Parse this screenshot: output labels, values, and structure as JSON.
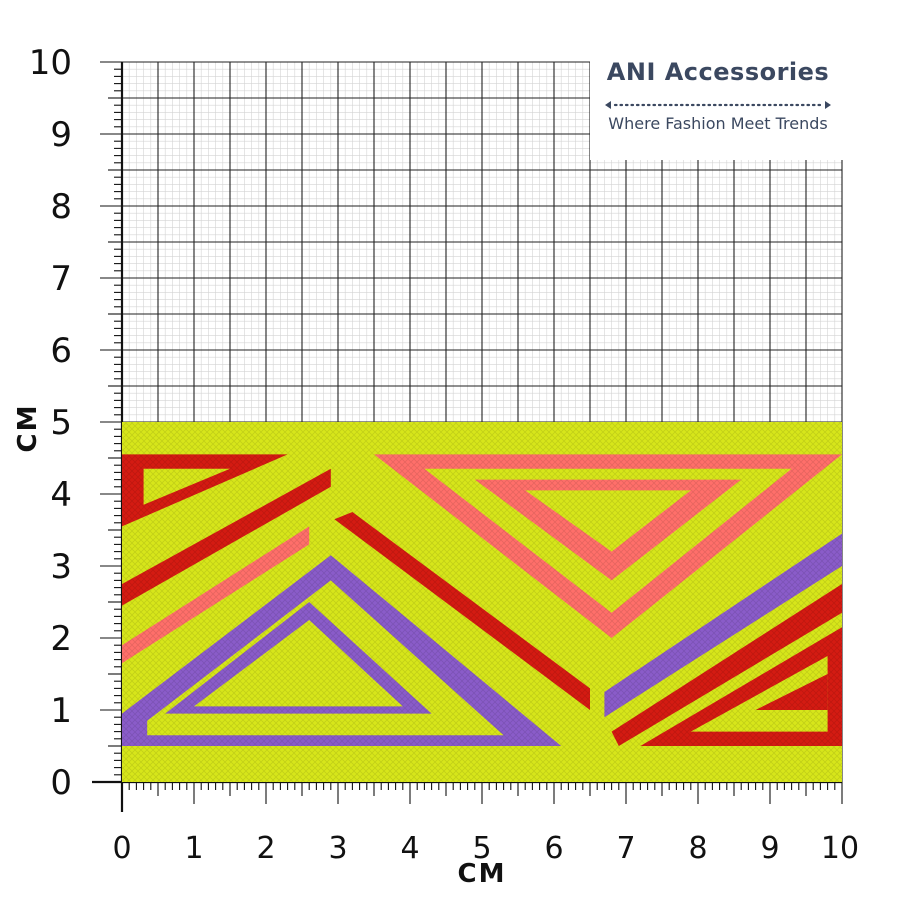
{
  "graph": {
    "y_ticks": [
      "0",
      "1",
      "2",
      "3",
      "4",
      "5",
      "6",
      "7",
      "8",
      "9",
      "10"
    ],
    "x_ticks": [
      "0",
      "1",
      "2",
      "3",
      "4",
      "5",
      "6",
      "7",
      "8",
      "9",
      "10"
    ],
    "y_unit": "CM",
    "x_unit": "CM",
    "range_cm": [
      0,
      10
    ]
  },
  "fabric": {
    "height_cm": 5,
    "width_cm": 10,
    "colors": {
      "yellow": "#d7e61a",
      "red": "#d41b12",
      "pink": "#ff6f6a",
      "purple": "#8a5cc9"
    }
  },
  "brand": {
    "name": "ANI Accessories",
    "tagline": "Where Fashion Meet Trends",
    "color": "#3b4860"
  }
}
